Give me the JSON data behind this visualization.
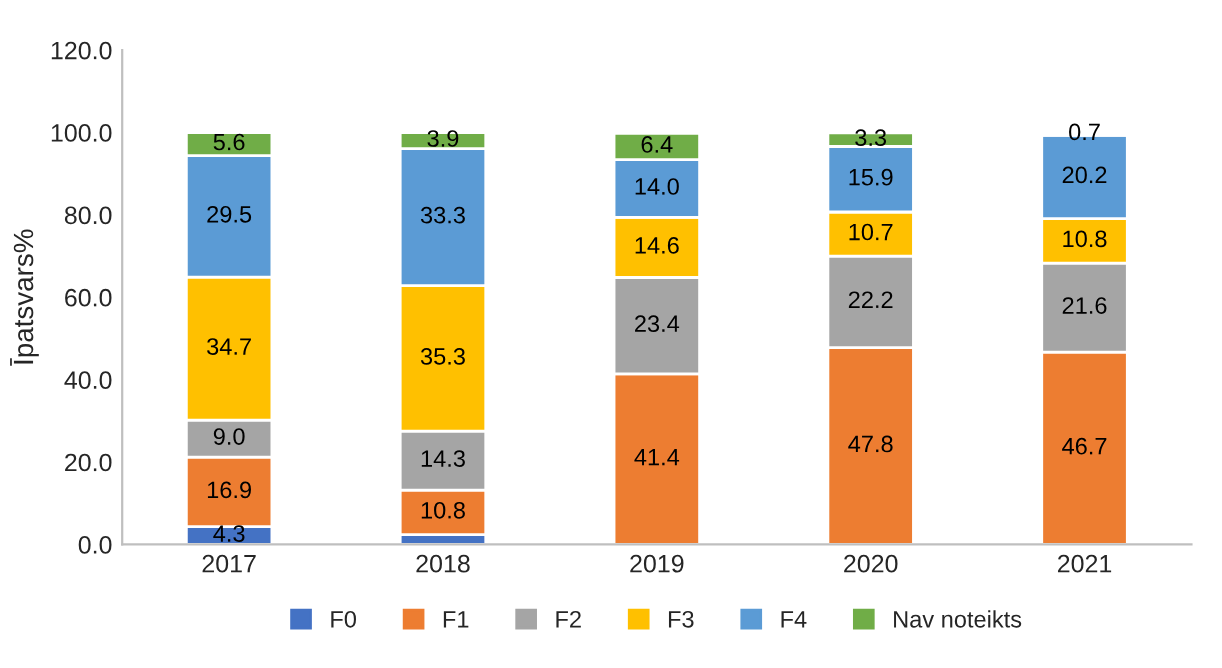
{
  "chart_data": {
    "type": "bar",
    "stacked": true,
    "ylabel": "Īpatsvars%",
    "categories": [
      "2017",
      "2018",
      "2019",
      "2020",
      "2021"
    ],
    "series": [
      {
        "name": "F0",
        "color": "#4472c4",
        "values": [
          4.3,
          2.4,
          0,
          0,
          0
        ],
        "value_labels": [
          "4.3",
          null,
          null,
          null,
          null
        ]
      },
      {
        "name": "F1",
        "color": "#ed7d31",
        "values": [
          16.9,
          10.8,
          41.4,
          47.8,
          46.7
        ],
        "value_labels": [
          "16.9",
          "10.8",
          "41.4",
          "47.8",
          "46.7"
        ]
      },
      {
        "name": "F2",
        "color": "#a5a5a5",
        "values": [
          9.0,
          14.3,
          23.4,
          22.2,
          21.6
        ],
        "value_labels": [
          "9.0",
          "14.3",
          "23.4",
          "22.2",
          "21.6"
        ]
      },
      {
        "name": "F3",
        "color": "#ffc000",
        "values": [
          34.7,
          35.3,
          14.6,
          10.7,
          10.8
        ],
        "value_labels": [
          "34.7",
          "35.3",
          "14.6",
          "10.7",
          "10.8"
        ]
      },
      {
        "name": "F4",
        "color": "#5b9bd5",
        "values": [
          29.5,
          33.3,
          14.0,
          15.9,
          20.2
        ],
        "value_labels": [
          "29.5",
          "33.3",
          "14.0",
          "15.9",
          "20.2"
        ]
      },
      {
        "name": "Nav noteikts",
        "color": "#70ad47",
        "values": [
          5.6,
          3.9,
          6.4,
          3.3,
          0.7
        ],
        "value_labels": [
          "5.6",
          "3.9",
          "6.4",
          "3.3",
          "0.7"
        ]
      }
    ],
    "ylim": [
      0,
      120
    ],
    "yticks": [
      {
        "value": 0,
        "label": "0.0"
      },
      {
        "value": 20,
        "label": "20.0"
      },
      {
        "value": 40,
        "label": "40.0"
      },
      {
        "value": 60,
        "label": "60.0"
      },
      {
        "value": 80,
        "label": "80.0"
      },
      {
        "value": 100,
        "label": "100.0"
      },
      {
        "value": 120,
        "label": "120.0"
      }
    ],
    "grid": false,
    "legend": "bottom"
  }
}
